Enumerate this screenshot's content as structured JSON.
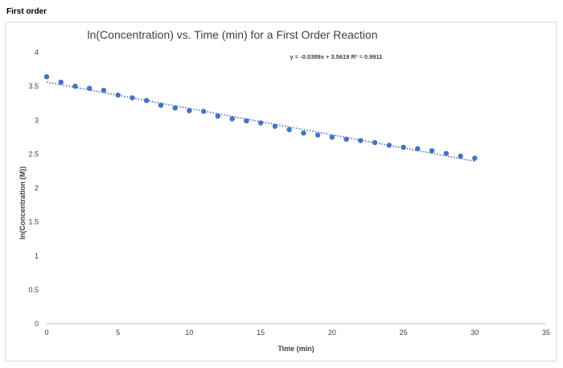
{
  "page": {
    "heading": "First order"
  },
  "chart_data": {
    "type": "scatter",
    "title": "ln(Concentration) vs. Time (min) for a First Order Reaction",
    "xlabel": "Time (min)",
    "ylabel": "ln(Concentration (M))",
    "xlim": [
      0,
      35
    ],
    "ylim": [
      0,
      4
    ],
    "xticks": [
      0,
      5,
      10,
      15,
      20,
      25,
      30,
      35
    ],
    "yticks": [
      0,
      0.5,
      1,
      1.5,
      2,
      2.5,
      3,
      3.5,
      4
    ],
    "grid": false,
    "legend": "none",
    "marker_color": "#4472c4",
    "trendline": {
      "type": "linear",
      "style": "dotted",
      "slope": -0.0389,
      "intercept": 3.5619,
      "r_squared": 0.9911,
      "label": "y = -0.0389x + 3.5619 R² = 0.9911"
    },
    "series": [
      {
        "x": [
          0,
          1,
          2,
          3,
          4,
          5,
          6,
          7,
          8,
          9,
          10,
          11,
          12,
          13,
          14,
          15,
          16,
          17,
          18,
          19,
          20,
          21,
          22,
          23,
          24,
          25,
          26,
          27,
          28,
          29,
          30
        ],
        "y": [
          3.64,
          3.56,
          3.5,
          3.47,
          3.44,
          3.37,
          3.33,
          3.29,
          3.22,
          3.18,
          3.14,
          3.13,
          3.06,
          3.02,
          2.99,
          2.96,
          2.91,
          2.86,
          2.81,
          2.78,
          2.75,
          2.72,
          2.7,
          2.67,
          2.63,
          2.6,
          2.58,
          2.55,
          2.51,
          2.47,
          2.44
        ]
      }
    ]
  }
}
